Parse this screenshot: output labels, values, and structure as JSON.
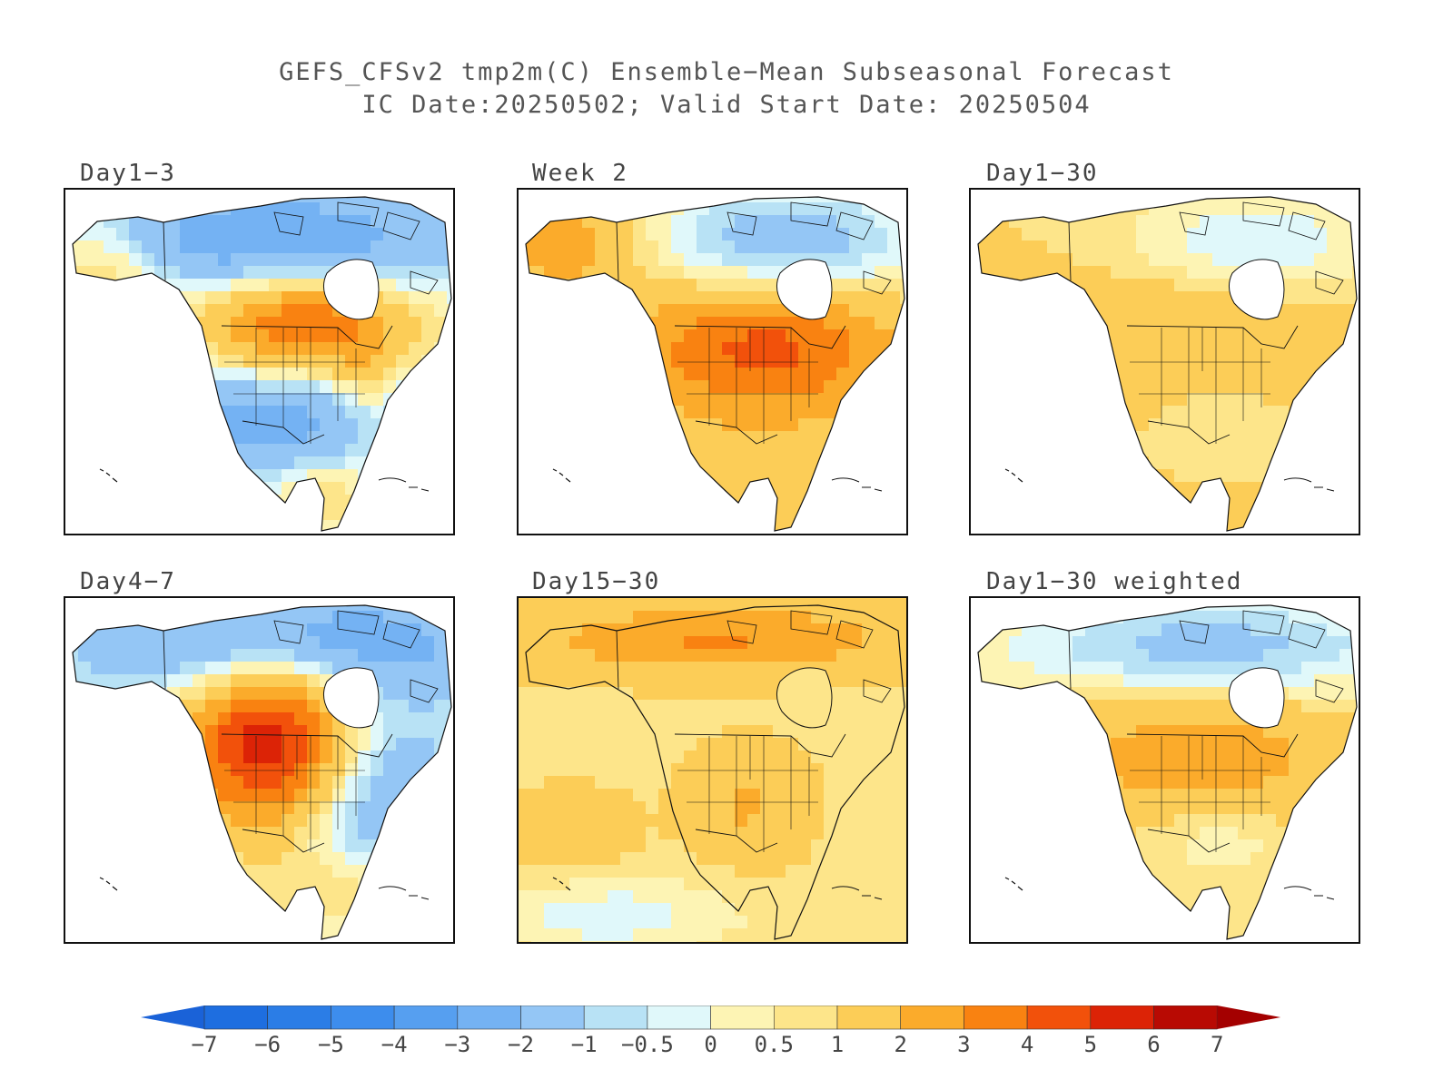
{
  "title": {
    "line1": "GEFS_CFSv2 tmp2m(C) Ensemble−Mean Subseasonal Forecast",
    "line2": "IC Date:20250502; Valid Start Date: 20250504"
  },
  "panels": [
    {
      "label": "Day1−3",
      "pattern": "day1_3"
    },
    {
      "label": "Week 2",
      "pattern": "week2"
    },
    {
      "label": "Day1−30",
      "pattern": "day1_30"
    },
    {
      "label": "Day4−7",
      "pattern": "day4_7"
    },
    {
      "label": "Day15−30",
      "pattern": "day15_30"
    },
    {
      "label": "Day1−30 weighted",
      "pattern": "day1_30w"
    }
  ],
  "colorbar": {
    "ticks": [
      "−7",
      "−6",
      "−5",
      "−4",
      "−3",
      "−2",
      "−1",
      "−0.5",
      "0",
      "0.5",
      "1",
      "2",
      "3",
      "4",
      "5",
      "6",
      "7"
    ],
    "colors": [
      "#1e6ee0",
      "#2b7de6",
      "#3d8ded",
      "#569ff0",
      "#74b2f3",
      "#94c6f5",
      "#b8e2f5",
      "#e0f8fa",
      "#fdf4b4",
      "#fde58a",
      "#fccd57",
      "#fbab2b",
      "#f98211",
      "#f2510b",
      "#dc2306",
      "#b80a03"
    ],
    "below_color": "#1a62d8",
    "above_color": "#a40000"
  }
}
